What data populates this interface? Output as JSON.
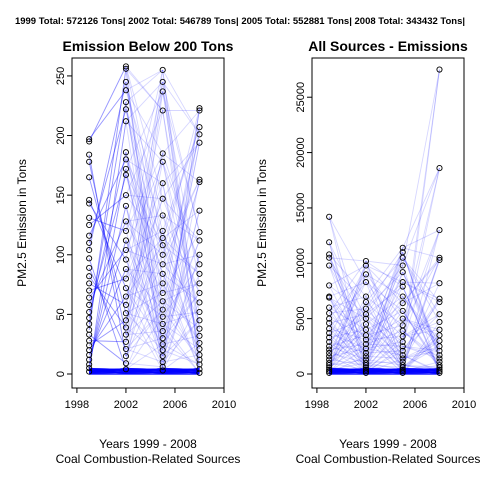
{
  "header": {
    "totals_text": "1999 Total: 572126 Tons| 2002 Total: 546789 Tons| 2005 Total: 552881 Tons| 2008 Total: 343432 Tons|"
  },
  "colors": {
    "line": "#0000ff",
    "point": "#000000",
    "axis": "#000000",
    "background": "#ffffff"
  },
  "chart_data": [
    {
      "type": "scatter",
      "title": "Emission Below 200 Tons",
      "xlabel": "Years 1999 - 2008",
      "xlabel2": "Coal Combustion-Related Sources",
      "ylabel": "PM2.5 Emission in Tons",
      "xlim": [
        1997.6,
        2010
      ],
      "ylim": [
        0,
        260
      ],
      "x_ticks": [
        1998,
        2002,
        2006,
        2010
      ],
      "y_ticks": [
        0,
        50,
        100,
        150,
        200,
        250
      ],
      "x_tick_labels": [
        "1998",
        "2002",
        "2006",
        "2010"
      ],
      "y_tick_labels": [
        "0",
        "50",
        "100",
        "150",
        "200",
        "250"
      ],
      "x": [
        1999,
        2002,
        2005,
        2008
      ],
      "series_columns": {
        "1999": [
          197,
          195,
          184,
          178,
          165,
          146,
          143,
          131,
          125,
          116,
          110,
          104,
          97,
          89,
          82,
          76,
          70,
          64,
          58,
          52,
          47,
          42,
          37,
          33,
          28,
          24,
          20,
          16,
          12,
          8,
          5,
          2
        ],
        "2002": [
          258,
          256,
          245,
          238,
          228,
          222,
          212,
          186,
          180,
          172,
          167,
          150,
          141,
          128,
          120,
          112,
          104,
          96,
          88,
          80,
          72,
          65,
          58,
          51,
          45,
          39,
          33,
          27,
          21,
          15,
          9,
          4
        ],
        "2005": [
          255,
          245,
          237,
          221,
          185,
          178,
          160,
          147,
          133,
          120,
          114,
          108,
          100,
          92,
          84,
          76,
          68,
          61,
          54,
          48,
          42,
          36,
          30,
          25,
          20,
          15,
          10,
          6,
          3
        ],
        "2008": [
          223,
          221,
          207,
          201,
          194,
          163,
          161,
          137,
          119,
          112,
          100,
          92,
          84,
          76,
          68,
          60,
          52,
          45,
          38,
          32,
          26,
          21,
          16,
          12,
          8,
          4,
          1
        ]
      },
      "grid": false,
      "legend": "none"
    },
    {
      "type": "scatter",
      "title": "All Sources - Emissions",
      "xlabel": "Years 1999 - 2008",
      "xlabel2": "Coal Combustion-Related Sources",
      "ylabel": "PM2.5 Emission in Tons",
      "xlim": [
        1997.6,
        2010
      ],
      "ylim": [
        0,
        28000
      ],
      "x_ticks": [
        1998,
        2002,
        2006,
        2010
      ],
      "y_ticks": [
        0,
        5000,
        10000,
        15000,
        20000,
        25000
      ],
      "x_tick_labels": [
        "1998",
        "2002",
        "2006",
        "2010"
      ],
      "y_tick_labels": [
        "0",
        "5000",
        "10000",
        "15000",
        "20000",
        "25000"
      ],
      "x": [
        1999,
        2002,
        2005,
        2008
      ],
      "series_columns": {
        "1999": [
          14200,
          11900,
          10800,
          10500,
          9800,
          8000,
          7000,
          6900,
          6000,
          5500,
          5000,
          4600,
          4100,
          3700,
          3300,
          2900,
          2500,
          2200,
          1900,
          1600,
          1300,
          1000,
          800,
          600,
          400,
          250,
          100
        ],
        "2002": [
          10200,
          9800,
          9000,
          8300,
          7000,
          6500,
          5900,
          5400,
          5000,
          4500,
          4000,
          3500,
          3100,
          2700,
          2300,
          1900,
          1600,
          1300,
          1000,
          800,
          600,
          400,
          250,
          100
        ],
        "2005": [
          11400,
          11000,
          10500,
          9800,
          9200,
          8300,
          7900,
          7000,
          6400,
          5700,
          5000,
          4400,
          3900,
          3400,
          2900,
          2500,
          2100,
          1700,
          1400,
          1100,
          800,
          600,
          400,
          250,
          100
        ],
        "2008": [
          27500,
          18600,
          13000,
          10500,
          10300,
          8200,
          6800,
          6500,
          5400,
          4700,
          4000,
          3500,
          3000,
          2500,
          2100,
          1700,
          1400,
          1100,
          800,
          600,
          400,
          250,
          100
        ]
      },
      "grid": false,
      "legend": "none"
    }
  ]
}
